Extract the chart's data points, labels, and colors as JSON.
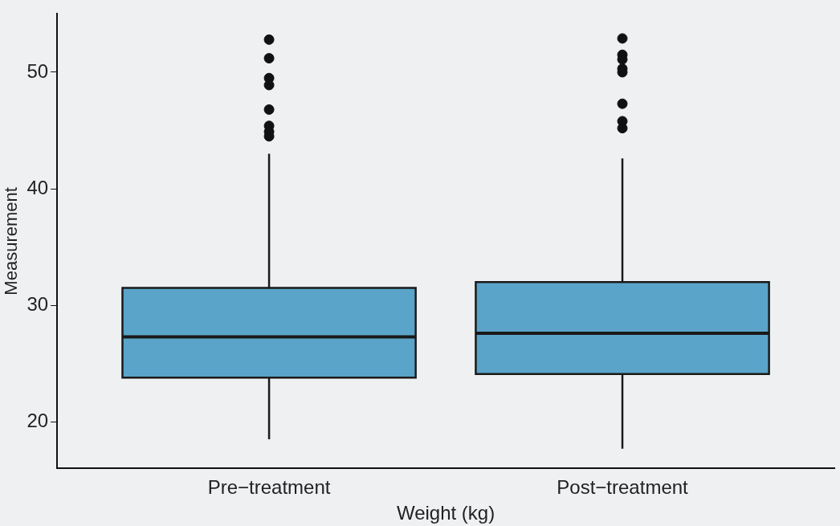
{
  "chart_data": {
    "type": "box",
    "xlabel": "Weight (kg)",
    "ylabel": "Measurement",
    "categories": [
      "Pre−treatment",
      "Post−treatment"
    ],
    "color": "#5aa4c9",
    "ylim": [
      16,
      55
    ],
    "yticks": [
      20,
      30,
      40,
      50
    ],
    "grid": false,
    "legend": false,
    "boxes": [
      {
        "low": 18.5,
        "q1": 23.8,
        "median": 27.3,
        "q3": 31.5,
        "high": 43.0,
        "outliers": [
          52.8,
          51.2,
          49.5,
          48.9,
          46.8,
          45.4,
          44.9,
          44.5
        ]
      },
      {
        "low": 17.7,
        "q1": 24.1,
        "median": 27.6,
        "q3": 32.0,
        "high": 42.6,
        "outliers": [
          52.9,
          51.5,
          51.1,
          50.3,
          50.0,
          47.3,
          45.8,
          45.2
        ]
      }
    ]
  }
}
